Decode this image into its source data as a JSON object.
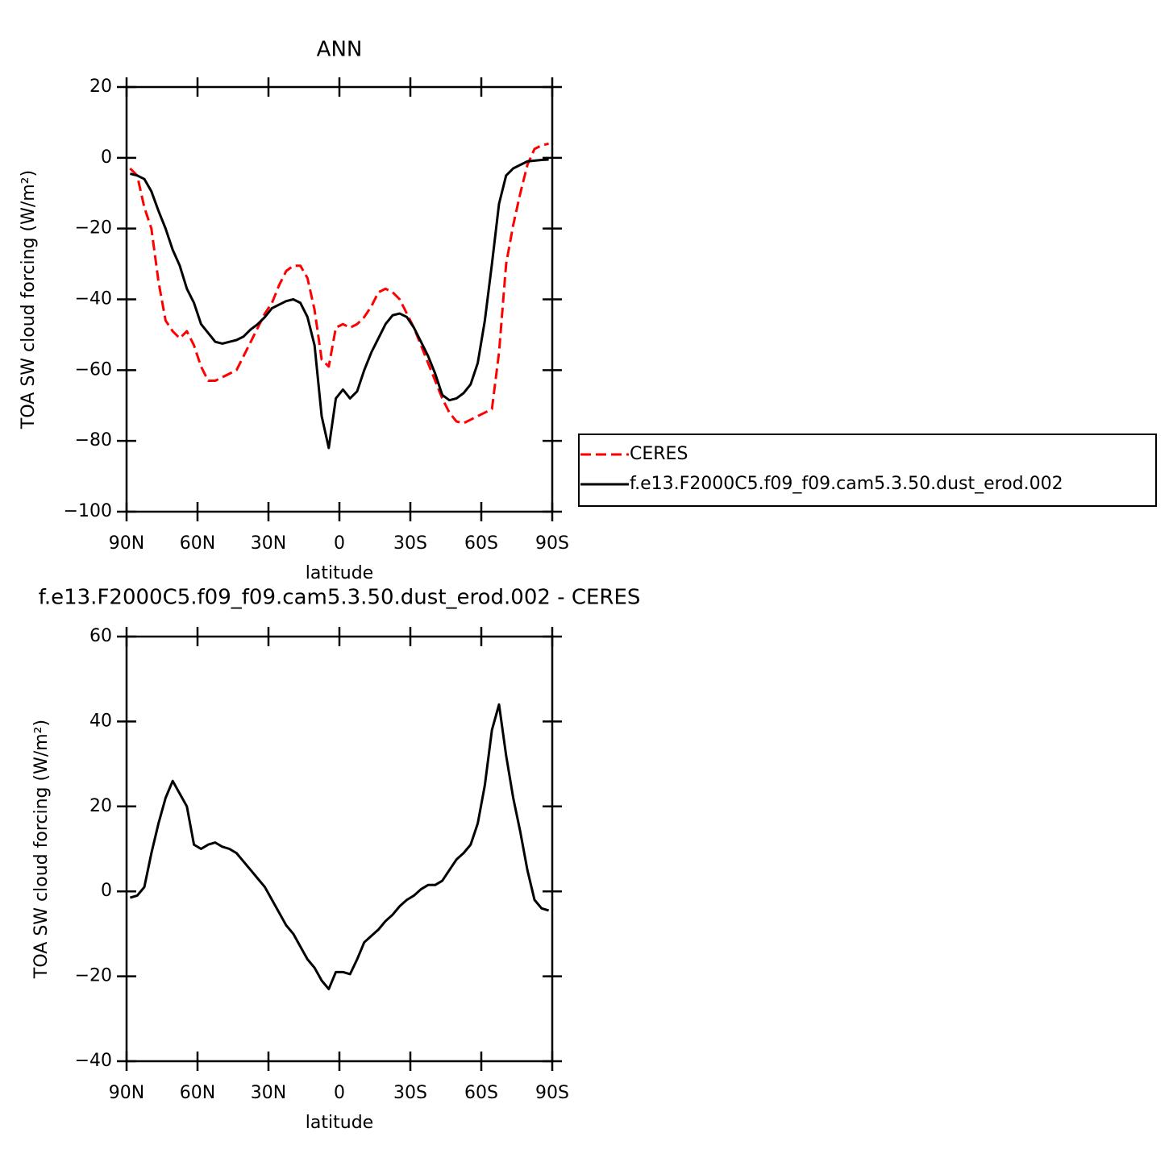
{
  "chart_data": [
    {
      "type": "line",
      "title": "ANN",
      "x_label": "latitude",
      "y_label": "TOA SW cloud forcing (W/m²)",
      "xlim": [
        90,
        -90
      ],
      "ylim": [
        -100,
        20
      ],
      "xticks": [
        {
          "value": 90,
          "label": "90N"
        },
        {
          "value": 60,
          "label": "60N"
        },
        {
          "value": 30,
          "label": "30N"
        },
        0,
        {
          "value": -30,
          "label": "30S"
        },
        {
          "value": -60,
          "label": "60S"
        },
        {
          "value": -90,
          "label": "90S"
        }
      ],
      "yticks": [
        {
          "value": -100,
          "label": "−100"
        },
        {
          "value": -80,
          "label": "−80"
        },
        {
          "value": -60,
          "label": "−60"
        },
        {
          "value": -40,
          "label": "−40"
        },
        {
          "value": -20,
          "label": "−20"
        },
        0,
        20
      ],
      "legend": "right",
      "x": [
        88.5,
        85.5,
        82.5,
        79.5,
        76.5,
        73.5,
        70.5,
        67.5,
        64.5,
        61.5,
        58.5,
        55.5,
        52.5,
        49.5,
        46.5,
        43.5,
        40.5,
        37.5,
        34.5,
        31.5,
        28.5,
        25.5,
        22.5,
        19.5,
        16.5,
        13.5,
        10.5,
        7.5,
        4.5,
        1.5,
        -1.5,
        -4.5,
        -7.5,
        -10.5,
        -13.5,
        -16.5,
        -19.5,
        -22.5,
        -25.5,
        -28.5,
        -31.5,
        -34.5,
        -37.5,
        -40.5,
        -43.5,
        -46.5,
        -49.5,
        -52.5,
        -55.5,
        -58.5,
        -61.5,
        -64.5,
        -67.5,
        -70.5,
        -73.5,
        -76.5,
        -79.5,
        -82.5,
        -85.5,
        -88.5
      ],
      "series": [
        {
          "name": "CERES",
          "color": "#ff0000",
          "line_style": "dashed",
          "values": [
            -3,
            -5,
            -14,
            -20,
            -35,
            -46,
            -49,
            -51,
            -49,
            -53,
            -59,
            -63,
            -63,
            -62,
            -61,
            -60,
            -56,
            -52,
            -48,
            -44,
            -41,
            -36,
            -32,
            -30.5,
            -30.5,
            -34,
            -43,
            -57,
            -59,
            -48,
            -47,
            -48,
            -47,
            -45,
            -42,
            -38,
            -37,
            -38,
            -40,
            -44,
            -48,
            -53,
            -58,
            -63,
            -68,
            -72,
            -74.5,
            -75,
            -74,
            -73,
            -72,
            -71,
            -55,
            -30,
            -19,
            -10,
            -2,
            2.5,
            3.5,
            4
          ]
        },
        {
          "name": "f.e13.F2000C5.f09_f09.cam5.3.50.dust_erod.002",
          "color": "#000000",
          "line_style": "solid",
          "values": [
            -4.5,
            -5,
            -6,
            -9.5,
            -15,
            -20,
            -26,
            -30.5,
            -37,
            -41,
            -47,
            -49.5,
            -52,
            -52.5,
            -52,
            -51.5,
            -50.5,
            -48.5,
            -47,
            -45,
            -42.5,
            -41.5,
            -40.5,
            -40,
            -41,
            -45,
            -53,
            -73,
            -82,
            -68,
            -65.5,
            -68,
            -66,
            -60,
            -55,
            -51,
            -47,
            -44.5,
            -44,
            -45,
            -48,
            -52,
            -56,
            -61,
            -67,
            -68.5,
            -68,
            -66.5,
            -64,
            -58,
            -46,
            -30,
            -13,
            -5,
            -3,
            -2,
            -1,
            -0.8,
            -0.6,
            -0.5
          ]
        }
      ]
    },
    {
      "type": "line",
      "title": "f.e13.F2000C5.f09_f09.cam5.3.50.dust_erod.002 - CERES",
      "x_label": "latitude",
      "y_label": "TOA SW cloud forcing (W/m²)",
      "xlim": [
        90,
        -90
      ],
      "ylim": [
        -40,
        60
      ],
      "xticks": [
        {
          "value": 90,
          "label": "90N"
        },
        {
          "value": 60,
          "label": "60N"
        },
        {
          "value": 30,
          "label": "30N"
        },
        0,
        {
          "value": -30,
          "label": "30S"
        },
        {
          "value": -60,
          "label": "60S"
        },
        {
          "value": -90,
          "label": "90S"
        }
      ],
      "yticks": [
        {
          "value": -40,
          "label": "−40"
        },
        {
          "value": -20,
          "label": "−20"
        },
        0,
        20,
        40,
        60
      ],
      "color": "#000000",
      "x": [
        88.5,
        85.5,
        82.5,
        79.5,
        76.5,
        73.5,
        70.5,
        67.5,
        64.5,
        61.5,
        58.5,
        55.5,
        52.5,
        49.5,
        46.5,
        43.5,
        40.5,
        37.5,
        34.5,
        31.5,
        28.5,
        25.5,
        22.5,
        19.5,
        16.5,
        13.5,
        10.5,
        7.5,
        4.5,
        1.5,
        -1.5,
        -4.5,
        -7.5,
        -10.5,
        -13.5,
        -16.5,
        -19.5,
        -22.5,
        -25.5,
        -28.5,
        -31.5,
        -34.5,
        -37.5,
        -40.5,
        -43.5,
        -46.5,
        -49.5,
        -52.5,
        -55.5,
        -58.5,
        -61.5,
        -64.5,
        -67.5,
        -70.5,
        -73.5,
        -76.5,
        -79.5,
        -82.5,
        -85.5,
        -88.5
      ],
      "values": [
        -1.5,
        -1,
        1,
        9,
        16,
        22,
        26,
        23,
        20,
        11,
        10,
        11,
        11.5,
        10.5,
        10,
        9,
        7,
        5,
        3,
        1,
        -2,
        -5,
        -8,
        -10,
        -13,
        -16,
        -18,
        -21,
        -23,
        -19,
        -19,
        -19.5,
        -16,
        -12,
        -10.5,
        -9,
        -7,
        -5.5,
        -3.5,
        -2,
        -1,
        0.5,
        1.5,
        1.5,
        2.5,
        5,
        7.5,
        9,
        11,
        16,
        25,
        38,
        44,
        32,
        22,
        14,
        5,
        -2,
        -4,
        -4.5
      ]
    }
  ]
}
